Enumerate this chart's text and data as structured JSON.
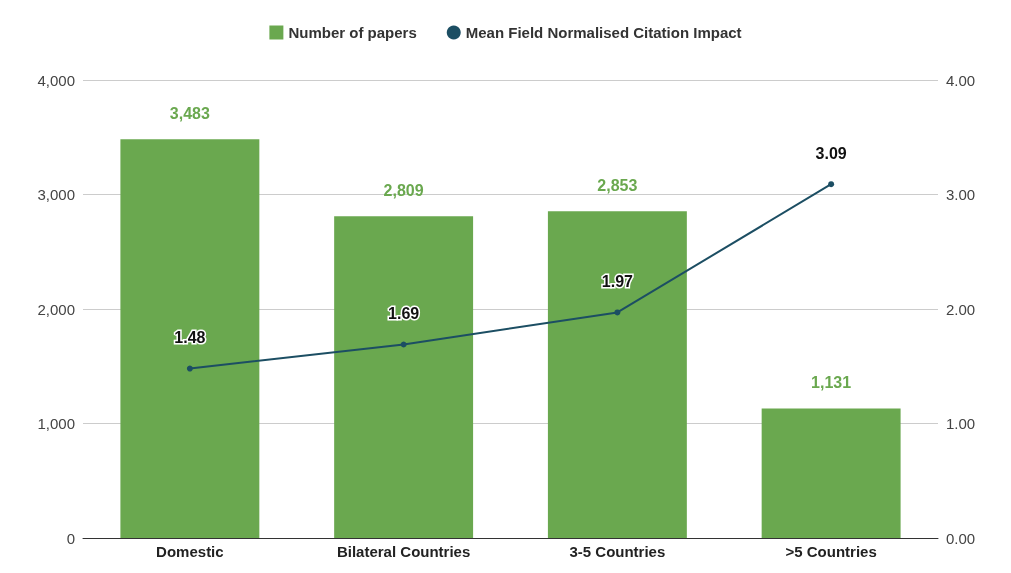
{
  "chart_data": {
    "type": "bar",
    "categories": [
      "Domestic",
      "Bilateral Countries",
      "3-5 Countries",
      ">5 Countries"
    ],
    "series": [
      {
        "name": "Number of papers",
        "color": "#6aa84f",
        "values": [
          3483,
          2809,
          2853,
          1131
        ],
        "value_labels": [
          "3,483",
          "2,809",
          "2,853",
          "1,131"
        ]
      },
      {
        "name": "Mean Field Normalised Citation Impact",
        "type": "line",
        "axis": "y2",
        "color": "#1c4e63",
        "marker": "circle",
        "values": [
          1.48,
          1.69,
          1.97,
          3.09
        ],
        "value_labels": [
          "1.48",
          "1.69",
          "1.97",
          "3.09"
        ]
      }
    ],
    "ylim": [
      0,
      4000
    ],
    "yticks": [
      0,
      {
        "value": 1000,
        "label": "1,000"
      },
      {
        "value": 2000,
        "label": "2,000"
      },
      {
        "value": 3000,
        "label": "3,000"
      },
      {
        "value": 4000,
        "label": "4,000"
      }
    ],
    "y2lim": [
      0,
      4
    ],
    "y2ticks": [
      {
        "value": 0,
        "label": "0.00"
      },
      {
        "value": 1,
        "label": "1.00"
      },
      {
        "value": 2,
        "label": "2.00"
      },
      {
        "value": 3,
        "label": "3.00"
      },
      {
        "value": 4,
        "label": "4.00"
      }
    ],
    "grid": "y",
    "legend": "top"
  }
}
